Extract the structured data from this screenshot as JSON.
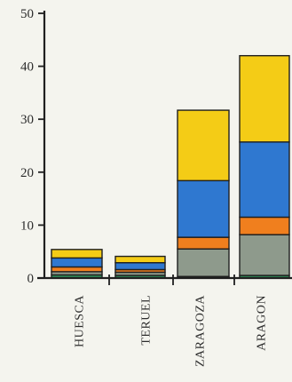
{
  "chart_data": {
    "type": "bar",
    "stacked": true,
    "title": "",
    "xlabel": "",
    "ylabel": "",
    "ylim": [
      0,
      50
    ],
    "yticks": [
      0,
      10,
      20,
      30,
      40,
      50
    ],
    "grid": false,
    "categories": [
      "HUESCA",
      "TERUEL",
      "ZARAGOZA",
      "ARAGON"
    ],
    "series": [
      {
        "color": "#2e8b57",
        "values": [
          0.6,
          0.5,
          0.3,
          0.5
        ]
      },
      {
        "color": "#8e9a8c",
        "values": [
          0.6,
          0.6,
          5.2,
          7.7
        ]
      },
      {
        "color": "#f07f1e",
        "values": [
          0.9,
          0.5,
          2.2,
          3.3
        ]
      },
      {
        "color": "#2f78d0",
        "values": [
          1.7,
          1.3,
          10.7,
          14.2
        ]
      },
      {
        "color": "#f4cc16",
        "values": [
          1.6,
          1.2,
          13.3,
          16.3
        ]
      }
    ]
  }
}
